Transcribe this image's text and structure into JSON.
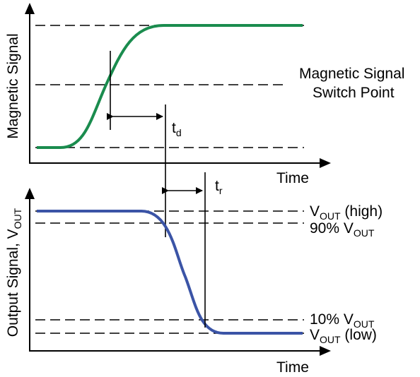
{
  "top_plot": {
    "y_axis_label": "Magnetic Signal",
    "x_axis_label": "Time",
    "switch_label_line1": "Magnetic Signal",
    "switch_label_line2": "Switch Point",
    "td_main": "t",
    "td_sub": "d",
    "curve_color": "#1a8c4e"
  },
  "bottom_plot": {
    "y_axis_label_main": "Output Signal, V",
    "y_axis_label_sub": "OUT",
    "x_axis_label": "Time",
    "tr_main": "t",
    "tr_sub": "r",
    "curve_color": "#3b54a6",
    "levels": {
      "vout_high": {
        "main": "V",
        "sub": "OUT",
        "suffix": " (high)"
      },
      "p90": {
        "main": "90% V",
        "sub": "OUT"
      },
      "p10": {
        "main": "10% V",
        "sub": "OUT"
      },
      "vout_low": {
        "main": "V",
        "sub": "OUT",
        "suffix": " (low)"
      }
    }
  }
}
